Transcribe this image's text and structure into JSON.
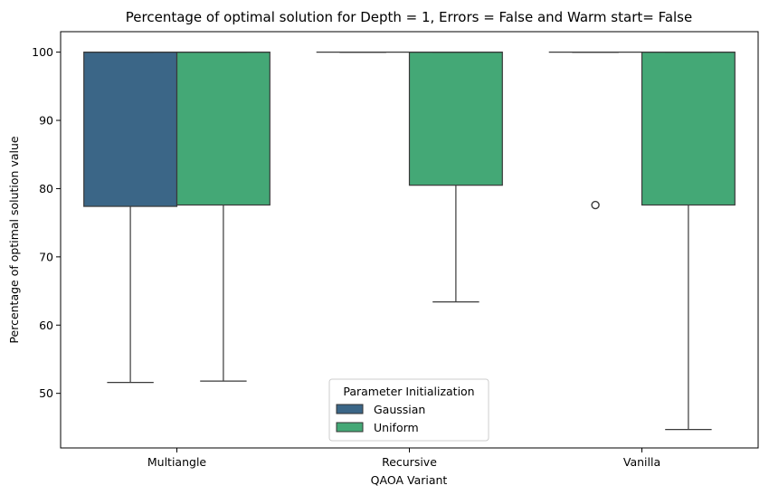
{
  "chart_data": {
    "type": "box",
    "title": "Percentage of optimal solution for Depth = 1, Errors = False and Warm start= False",
    "xlabel": "QAOA Variant",
    "ylabel": "Percentage of optimal solution value",
    "categories": [
      "Multiangle",
      "Recursive",
      "Vanilla"
    ],
    "ylim": [
      42.0,
      103.0
    ],
    "yticks": [
      50,
      60,
      70,
      80,
      90,
      100
    ],
    "grid": false,
    "legend": {
      "title": "Parameter Initialization",
      "placement": "lower-center"
    },
    "series": [
      {
        "name": "Gaussian",
        "color": "#3b6687",
        "boxes": [
          {
            "category": "Multiangle",
            "whisker_low": 51.6,
            "q1": 77.4,
            "median": 100.0,
            "q3": 100.0,
            "whisker_high": 100.0,
            "outliers": []
          },
          {
            "category": "Recursive",
            "whisker_low": 100.0,
            "q1": 100.0,
            "median": 100.0,
            "q3": 100.0,
            "whisker_high": 100.0,
            "outliers": []
          },
          {
            "category": "Vanilla",
            "whisker_low": 100.0,
            "q1": 100.0,
            "median": 100.0,
            "q3": 100.0,
            "whisker_high": 100.0,
            "outliers": [
              77.6
            ]
          }
        ]
      },
      {
        "name": "Uniform",
        "color": "#44a876",
        "boxes": [
          {
            "category": "Multiangle",
            "whisker_low": 51.8,
            "q1": 77.6,
            "median": 100.0,
            "q3": 100.0,
            "whisker_high": 100.0,
            "outliers": []
          },
          {
            "category": "Recursive",
            "whisker_low": 63.4,
            "q1": 80.5,
            "median": 100.0,
            "q3": 100.0,
            "whisker_high": 100.0,
            "outliers": []
          },
          {
            "category": "Vanilla",
            "whisker_low": 44.7,
            "q1": 77.6,
            "median": 100.0,
            "q3": 100.0,
            "whisker_high": 100.0,
            "outliers": []
          }
        ]
      }
    ]
  }
}
